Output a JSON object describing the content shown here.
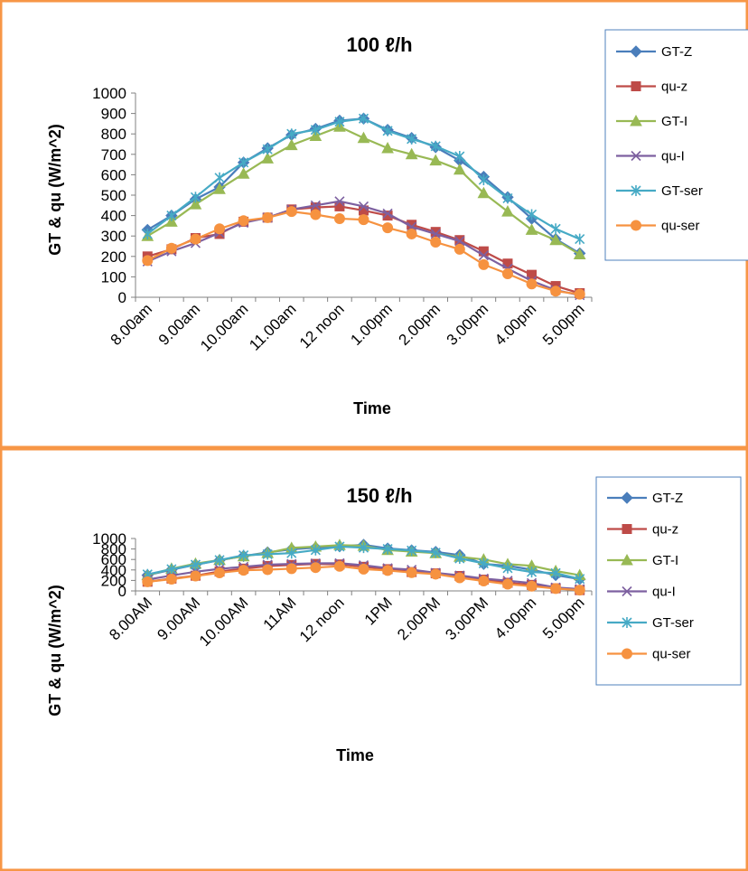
{
  "colors": {
    "border": "#f79646",
    "axis": "#808080",
    "legend_border": "#4f81bd",
    "series": {
      "gt_z": "#4a7ebb",
      "qu_z": "#be4b48",
      "gt_i": "#98b954",
      "qu_i": "#7d60a0",
      "gt_ser": "#46aac5",
      "qu_ser": "#f69240"
    },
    "marker_icons": [
      "diamond",
      "square",
      "triangle",
      "x",
      "star",
      "circle"
    ]
  },
  "chart_data": [
    {
      "type": "line",
      "title": "100 ℓ/h",
      "xlabel": "Time",
      "ylabel": "GT & qu (W/m^2)",
      "ylim": [
        0,
        1000
      ],
      "ytick_step": 100,
      "grid": false,
      "legend_position": "right",
      "x_tick_labels": [
        "8.00am",
        "9.00am",
        "10.00am",
        "11.00am",
        "12 noon",
        "1.00pm",
        "2.00pm",
        "3.00pm",
        "4.00pm",
        "5.00pm"
      ],
      "series": [
        {
          "name": "GT-Z",
          "values": [
            330,
            400,
            480,
            540,
            660,
            730,
            795,
            825,
            865,
            875,
            820,
            780,
            735,
            670,
            590,
            490,
            385,
            285,
            215
          ]
        },
        {
          "name": "qu-z",
          "values": [
            200,
            235,
            290,
            310,
            370,
            390,
            430,
            440,
            445,
            425,
            400,
            355,
            320,
            280,
            225,
            165,
            110,
            55,
            20
          ]
        },
        {
          "name": "GT-I",
          "values": [
            300,
            370,
            455,
            530,
            605,
            680,
            745,
            790,
            835,
            780,
            730,
            700,
            670,
            625,
            510,
            420,
            330,
            280,
            210
          ]
        },
        {
          "name": "qu-I",
          "values": [
            175,
            225,
            265,
            315,
            365,
            390,
            430,
            450,
            470,
            445,
            410,
            345,
            310,
            275,
            205,
            140,
            80,
            35,
            10
          ]
        },
        {
          "name": "GT-ser",
          "values": [
            310,
            400,
            490,
            585,
            660,
            725,
            800,
            820,
            860,
            875,
            815,
            775,
            740,
            690,
            575,
            485,
            405,
            335,
            285
          ]
        },
        {
          "name": "qu-ser",
          "values": [
            180,
            240,
            285,
            335,
            375,
            390,
            420,
            405,
            385,
            380,
            340,
            310,
            270,
            235,
            160,
            115,
            65,
            30,
            15
          ]
        }
      ]
    },
    {
      "type": "line",
      "title": "150 ℓ/h",
      "xlabel": "Time",
      "ylabel": "GT & qu (W/m^2)",
      "ylim": [
        0,
        1000
      ],
      "ytick_step": 200,
      "grid": false,
      "legend_position": "right",
      "x_tick_labels": [
        "8.00AM",
        "9.00AM",
        "10.00AM",
        "11AM",
        "12 noon",
        "1PM",
        "2.00PM",
        "3.00PM",
        "4.00pm",
        "5.00pm"
      ],
      "series": [
        {
          "name": "GT-Z",
          "values": [
            300,
            405,
            500,
            585,
            665,
            735,
            795,
            825,
            850,
            880,
            810,
            775,
            745,
            685,
            515,
            480,
            405,
            300,
            225
          ]
        },
        {
          "name": "qu-z",
          "values": [
            175,
            235,
            290,
            370,
            425,
            475,
            495,
            515,
            505,
            460,
            415,
            360,
            335,
            285,
            215,
            155,
            115,
            50,
            15
          ]
        },
        {
          "name": "GT-I",
          "values": [
            300,
            425,
            520,
            590,
            660,
            725,
            820,
            845,
            875,
            860,
            780,
            750,
            720,
            650,
            600,
            510,
            480,
            380,
            300
          ]
        },
        {
          "name": "qu-I",
          "values": [
            215,
            295,
            365,
            420,
            460,
            500,
            515,
            525,
            530,
            490,
            435,
            405,
            345,
            295,
            235,
            195,
            150,
            65,
            35
          ]
        },
        {
          "name": "GT-ser",
          "values": [
            315,
            415,
            500,
            590,
            680,
            700,
            720,
            780,
            845,
            825,
            800,
            770,
            730,
            620,
            525,
            435,
            360,
            340,
            230
          ]
        },
        {
          "name": "qu-ser",
          "values": [
            175,
            225,
            285,
            345,
            395,
            405,
            425,
            445,
            470,
            415,
            390,
            350,
            320,
            250,
            190,
            130,
            90,
            45,
            15
          ]
        }
      ]
    }
  ]
}
